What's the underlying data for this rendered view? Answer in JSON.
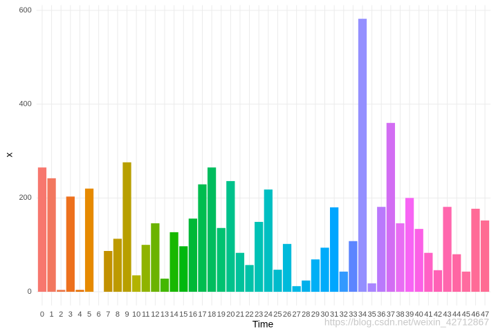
{
  "chart_data": {
    "type": "bar",
    "x_label": "Time",
    "y_label": "x",
    "categories": [
      "0",
      "1",
      "2",
      "3",
      "4",
      "5",
      "6",
      "7",
      "8",
      "9",
      "10",
      "11",
      "12",
      "13",
      "14",
      "15",
      "16",
      "17",
      "18",
      "19",
      "20",
      "21",
      "22",
      "23",
      "24",
      "25",
      "26",
      "27",
      "28",
      "29",
      "30",
      "31",
      "32",
      "33",
      "34",
      "35",
      "36",
      "37",
      "38",
      "39",
      "40",
      "41",
      "42",
      "43",
      "44",
      "45",
      "46",
      "47"
    ],
    "values": [
      265,
      242,
      4,
      203,
      4,
      220,
      0,
      87,
      113,
      276,
      35,
      100,
      146,
      28,
      127,
      97,
      156,
      229,
      265,
      136,
      236,
      83,
      57,
      149,
      218,
      47,
      102,
      12,
      24,
      69,
      94,
      180,
      43,
      108,
      582,
      18,
      181,
      360,
      146,
      200,
      134,
      83,
      46,
      181,
      80,
      43,
      177,
      152
    ],
    "colors": [
      "hsl(4,90%,70%)",
      "hsl(10,85%,66%)",
      "hsl(17,80%,60%)",
      "hsl(24,85%,52%)",
      "hsl(29,95%,46%)",
      "hsl(36,100%,45%)",
      "hsl(41,100%,42%)",
      "hsl(45,100%,38%)",
      "hsl(49,100%,37%)",
      "hsl(52,100%,36%)",
      "hsl(60,100%,35%)",
      "hsl(72,100%,35%)",
      "hsl(84,100%,35%)",
      "hsl(98,100%,36%)",
      "hsl(112,100%,36%)",
      "hsl(125,100%,36%)",
      "hsl(138,100%,36%)",
      "hsl(145,100%,37%)",
      "hsl(150,100%,37%)",
      "hsl(155,100%,38%)",
      "hsl(163,100%,38%)",
      "hsl(168,100%,38%)",
      "hsl(172,100%,38%)",
      "hsl(176,100%,38%)",
      "hsl(181,100%,38%)",
      "hsl(185,100%,40%)",
      "hsl(189,100%,43%)",
      "hsl(192,100%,45%)",
      "hsl(195,100%,46%)",
      "hsl(197,100%,48%)",
      "hsl(199,100%,49%)",
      "hsl(201,100%,50%)",
      "hsl(210,100%,60%)",
      "hsl(225,100%,68%)",
      "hsl(243,100%,78%)",
      "hsl(258,100%,76%)",
      "hsl(270,95%,73%)",
      "hsl(285,85%,69%)",
      "hsl(295,85%,69%)",
      "hsl(301,90%,68%)",
      "hsl(308,95%,68%)",
      "hsl(322,100%,69%)",
      "hsl(328,100%,69%)",
      "hsl(332,100%,70%)",
      "hsl(336,100%,70%)",
      "hsl(339,100%,71%)",
      "hsl(342,100%,71%)",
      "hsl(344,100%,71%)"
    ],
    "ylim": [
      -29,
      611
    ],
    "yticks": [
      0,
      200,
      400,
      600
    ],
    "grid": true,
    "watermark": "https://blog.csdn.net/weixin_42712867"
  }
}
